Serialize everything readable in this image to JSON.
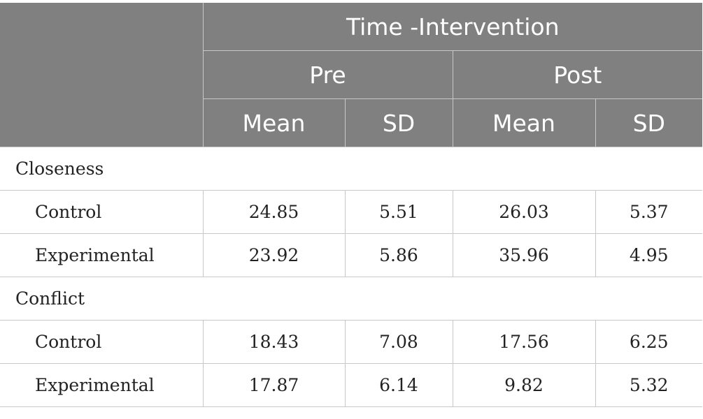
{
  "header": {
    "super": "Time -Intervention",
    "pre": "Pre",
    "post": "Post",
    "mean": "Mean",
    "sd": "SD"
  },
  "groups": [
    {
      "name": "Closeness",
      "rows": [
        {
          "label": "Control",
          "pre_mean": "24.85",
          "pre_sd": "5.51",
          "post_mean": "26.03",
          "post_sd": "5.37"
        },
        {
          "label": "Experimental",
          "pre_mean": "23.92",
          "pre_sd": "5.86",
          "post_mean": "35.96",
          "post_sd": "4.95"
        }
      ]
    },
    {
      "name": "Conflict",
      "rows": [
        {
          "label": "Control",
          "pre_mean": "18.43",
          "pre_sd": "7.08",
          "post_mean": "17.56",
          "post_sd": "6.25"
        },
        {
          "label": "Experimental",
          "pre_mean": "17.87",
          "pre_sd": "6.14",
          "post_mean": "9.82",
          "post_sd": "5.32"
        }
      ]
    }
  ]
}
